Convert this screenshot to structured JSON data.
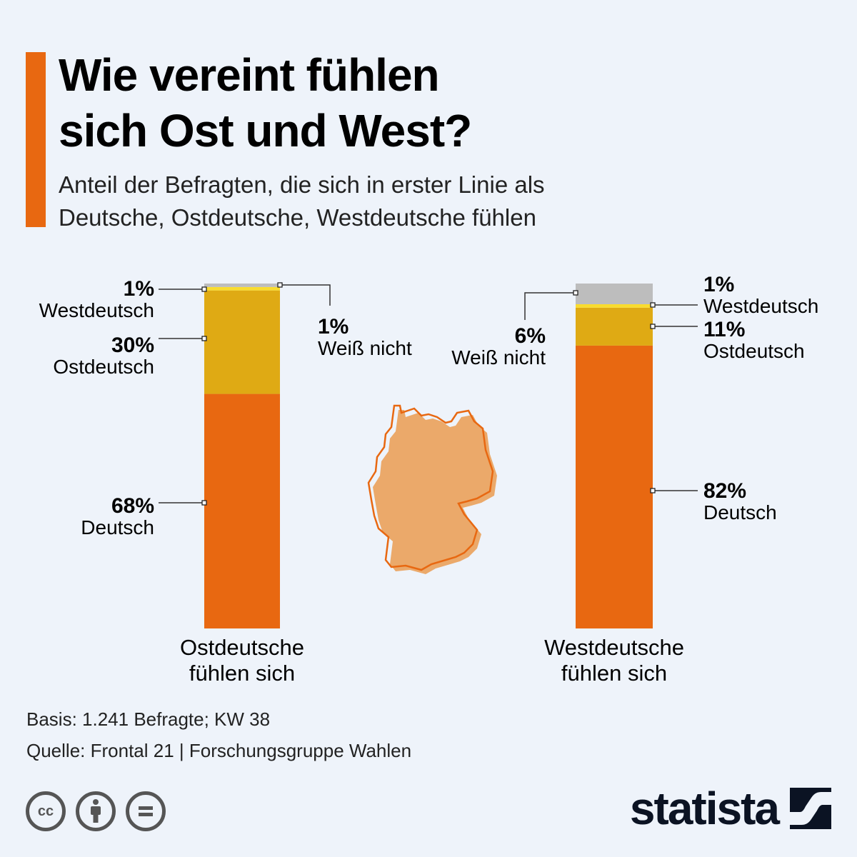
{
  "header": {
    "title_line1": "Wie vereint fühlen",
    "title_line2": "sich Ost und West?",
    "subtitle_line1": "Anteil der Befragten, die sich in erster Linie als",
    "subtitle_line2": "Deutsche, Ostdeutsche, Westdeutsche fühlen",
    "accent_color": "#e86811"
  },
  "chart_data": {
    "type": "bar",
    "stacked": true,
    "title": "Wie vereint fühlen sich Ost und West?",
    "subtitle": "Anteil der Befragten, die sich in erster Linie als Deutsche, Ostdeutsche, Westdeutsche fühlen",
    "unit": "%",
    "categories": [
      "Ostdeutsche fühlen sich",
      "Westdeutsche fühlen sich"
    ],
    "category_lines": [
      [
        "Ostdeutsche",
        "fühlen sich"
      ],
      [
        "Westdeutsche",
        "fühlen sich"
      ]
    ],
    "series": [
      {
        "name": "Deutsch",
        "color": "#e86811",
        "values": [
          68,
          82
        ]
      },
      {
        "name": "Ostdeutsch",
        "color": "#dfaa14",
        "values": [
          30,
          11
        ]
      },
      {
        "name": "Westdeutsch",
        "color": "#f9dc2e",
        "values": [
          1,
          1
        ]
      },
      {
        "name": "Weiß nicht",
        "color": "#bdbdbd",
        "values": [
          1,
          6
        ]
      }
    ],
    "labels": [
      [
        {
          "series": "Westdeutsch",
          "value": "1%",
          "name": "Westdeutsch",
          "side": "left"
        },
        {
          "series": "Ostdeutsch",
          "value": "30%",
          "name": "Ostdeutsch",
          "side": "left"
        },
        {
          "series": "Deutsch",
          "value": "68%",
          "name": "Deutsch",
          "side": "left"
        },
        {
          "series": "Weiß nicht",
          "value": "1%",
          "name": "Weiß nicht",
          "side": "right"
        }
      ],
      [
        {
          "series": "Weiß nicht",
          "value": "6%",
          "name": "Weiß nicht",
          "side": "left"
        },
        {
          "series": "Westdeutsch",
          "value": "1%",
          "name": "Westdeutsch",
          "side": "right"
        },
        {
          "series": "Ostdeutsch",
          "value": "11%",
          "name": "Ostdeutsch",
          "side": "right"
        },
        {
          "series": "Deutsch",
          "value": "82%",
          "name": "Deutsch",
          "side": "right"
        }
      ]
    ],
    "ylim": [
      0,
      100
    ],
    "grid": false,
    "legend": "none"
  },
  "footer": {
    "basis": "Basis: 1.241 Befragte; KW 38",
    "source": "Quelle: Frontal 21 | Forschungsgruppe Wahlen",
    "icons": [
      "creative-commons-icon",
      "attribution-icon",
      "no-derivatives-icon"
    ],
    "logo_text": "statista"
  }
}
